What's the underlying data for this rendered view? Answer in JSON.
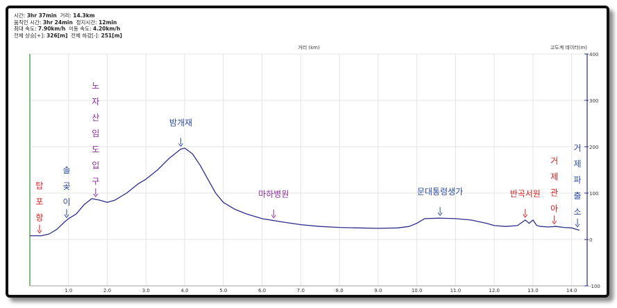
{
  "stats": {
    "line1": {
      "time_label": "시간:",
      "time_value": "3hr 37min",
      "dist_label": "거리:",
      "dist_value": "14.3km"
    },
    "line2": {
      "moving_label": "움직인 시간:",
      "moving_value": "3hr 24min",
      "stop_label": "정지시간:",
      "stop_value": "12min"
    },
    "line3": {
      "max_label": "최대 속도:",
      "max_value": "7.90km/h",
      "avg_label": "이동 속도:",
      "avg_value": "4.20km/h"
    },
    "line4": {
      "up_label": "전체 상승[+]:",
      "up_value": "326[m]",
      "down_label": "전체 하강[-]:",
      "down_value": "251[m]"
    }
  },
  "colors": {
    "line": "#2b2b8a",
    "red_label": "#d42020",
    "purple_label": "#8a2a9a",
    "blue_label": "#2b4aa0",
    "left_axis": "#2e8b2e"
  },
  "chart_data": {
    "type": "line",
    "xlabel": "거리 (km)",
    "ylabel": "고도계 데이터(m)",
    "xlim": [
      0,
      14.4
    ],
    "ylim": [
      -100,
      400
    ],
    "xticks": [
      "1.0",
      "2.0",
      "3.0",
      "4.0",
      "5.0",
      "6.0",
      "7.0",
      "8.0",
      "9.0",
      "10.0",
      "11.0",
      "12.0",
      "13.0",
      "14.0"
    ],
    "yticks": [
      "400",
      "300",
      "200",
      "100",
      "0",
      "-100"
    ],
    "series": [
      {
        "x": [
          0,
          0.3,
          0.5,
          0.7,
          0.9,
          1.0,
          1.2,
          1.4,
          1.6,
          1.8,
          2.0,
          2.2,
          2.5,
          2.8,
          3.0,
          3.3,
          3.6,
          3.9,
          4.0,
          4.2,
          4.4,
          4.6,
          4.8,
          5.0,
          5.3,
          5.6,
          6.0,
          6.5,
          7.0,
          7.5,
          8.0,
          8.5,
          9.0,
          9.5,
          9.8,
          10.0,
          10.2,
          10.6,
          11.0,
          11.4,
          11.8,
          12.0,
          12.3,
          12.6,
          12.8,
          12.9,
          13.0,
          13.1,
          13.2,
          13.4,
          13.6,
          13.8,
          14.0,
          14.2
        ],
        "y": [
          8,
          8,
          12,
          22,
          38,
          45,
          55,
          75,
          88,
          85,
          80,
          85,
          100,
          120,
          130,
          150,
          175,
          195,
          197,
          185,
          160,
          130,
          100,
          80,
          65,
          55,
          45,
          38,
          32,
          28,
          26,
          25,
          24,
          25,
          28,
          35,
          45,
          46,
          45,
          42,
          35,
          30,
          28,
          30,
          42,
          35,
          42,
          30,
          28,
          27,
          28,
          26,
          25,
          20
        ]
      }
    ],
    "annotations": [
      {
        "text": "탑포항",
        "x": 0.25,
        "style": "red",
        "vertical": true
      },
      {
        "text": "솔곶이",
        "x": 0.95,
        "style": "blue",
        "vertical": true
      },
      {
        "text": "노자산임도입구",
        "x": 1.7,
        "style": "purple",
        "vertical": true
      },
      {
        "text": "밤개재",
        "x": 3.9,
        "style": "blue",
        "vertical": false
      },
      {
        "text": "마하병원",
        "x": 6.3,
        "style": "purple",
        "vertical": false
      },
      {
        "text": "문대통령생가",
        "x": 10.6,
        "style": "blue",
        "vertical": false
      },
      {
        "text": "반곡서원",
        "x": 12.8,
        "style": "red",
        "vertical": false
      },
      {
        "text": "거제관아",
        "x": 13.55,
        "style": "red",
        "vertical": true
      },
      {
        "text": "거제파출소",
        "x": 14.15,
        "style": "blue",
        "vertical": true
      }
    ]
  }
}
